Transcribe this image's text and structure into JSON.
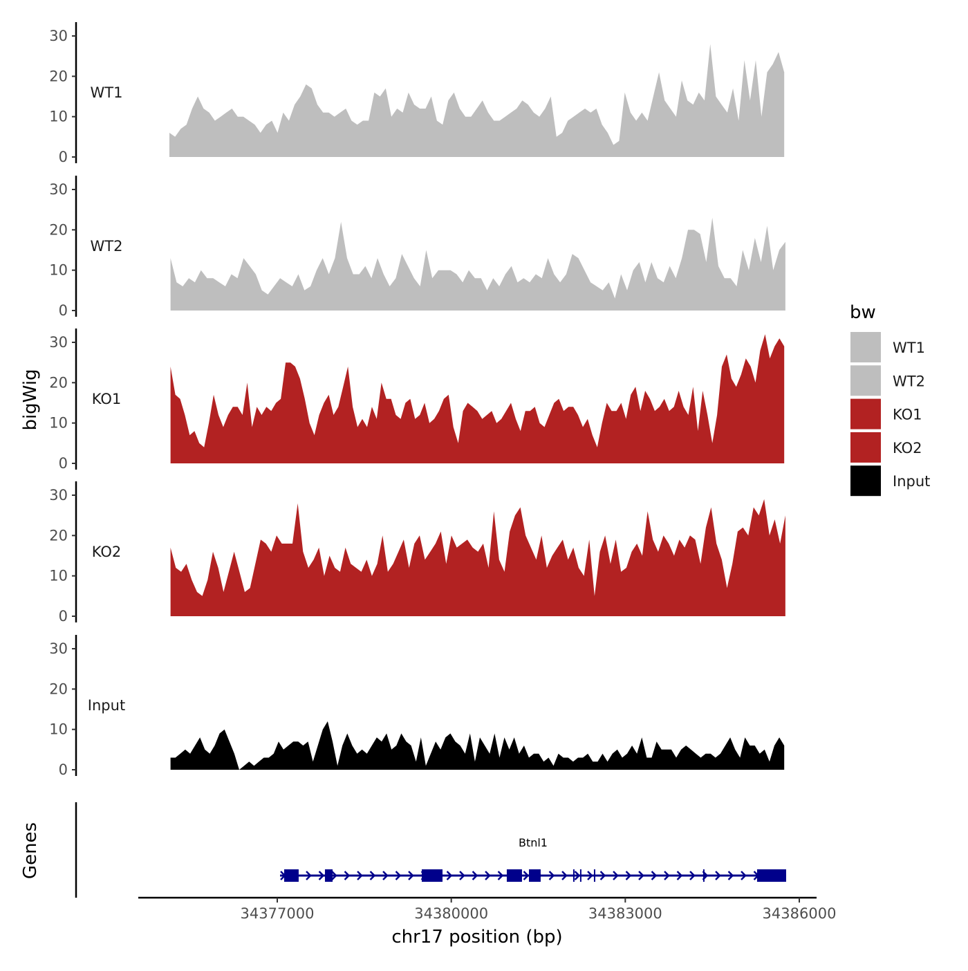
{
  "chart_data": {
    "type": "area",
    "ylabel": "bigWig",
    "genes_label": "Genes",
    "xlabel": "chr17 position (bp)",
    "xlim": [
      34374800,
      34386300
    ],
    "x_ticks": [
      34377000,
      34380000,
      34383000,
      34386000
    ],
    "x_tick_labels": [
      "34377000",
      "34380000",
      "34383000",
      "34386000"
    ],
    "ylim": [
      0,
      32
    ],
    "y_ticks": [
      0,
      10,
      20,
      30
    ],
    "y_tick_labels": [
      "0",
      "10",
      "20",
      "30"
    ],
    "legend": {
      "title": "bw",
      "position": "right",
      "entries": [
        {
          "label": "WT1",
          "color": "#bebebe"
        },
        {
          "label": "WT2",
          "color": "#bebebe"
        },
        {
          "label": "KO1",
          "color": "#b22222"
        },
        {
          "label": "KO2",
          "color": "#b22222"
        },
        {
          "label": "Input",
          "color": "#000000"
        }
      ]
    },
    "tracks": [
      {
        "name": "WT1",
        "color": "#bebebe",
        "x_start": 34375140,
        "x_end": 34385740,
        "values": [
          6,
          5,
          7,
          8,
          12,
          15,
          12,
          11,
          9,
          10,
          11,
          12,
          10,
          10,
          9,
          8,
          6,
          8,
          9,
          6,
          11,
          9,
          13,
          15,
          18,
          17,
          13,
          11,
          11,
          10,
          11,
          12,
          9,
          8,
          9,
          9,
          16,
          15,
          17,
          10,
          12,
          11,
          16,
          13,
          12,
          12,
          15,
          9,
          8,
          14,
          16,
          12,
          10,
          10,
          12,
          14,
          11,
          9,
          9,
          10,
          11,
          12,
          14,
          13,
          11,
          10,
          12,
          15,
          5,
          6,
          9,
          10,
          11,
          12,
          11,
          12,
          8,
          6,
          3,
          4,
          16,
          11,
          9,
          11,
          9,
          15,
          21,
          14,
          12,
          10,
          19,
          14,
          13,
          16,
          14,
          28,
          15,
          13,
          11,
          17,
          9,
          24,
          14,
          24,
          10,
          21,
          23,
          26,
          21
        ]
      },
      {
        "name": "WT2",
        "color": "#bebebe",
        "x_start": 34375160,
        "x_end": 34385760,
        "values": [
          13,
          7,
          6,
          8,
          7,
          10,
          8,
          8,
          7,
          6,
          9,
          8,
          13,
          11,
          9,
          5,
          4,
          6,
          8,
          7,
          6,
          9,
          5,
          6,
          10,
          13,
          9,
          13,
          22,
          13,
          9,
          9,
          11,
          8,
          13,
          9,
          6,
          8,
          14,
          11,
          8,
          6,
          15,
          8,
          10,
          10,
          10,
          9,
          7,
          10,
          8,
          8,
          5,
          8,
          6,
          9,
          11,
          7,
          8,
          7,
          9,
          8,
          13,
          9,
          7,
          9,
          14,
          13,
          10,
          7,
          6,
          5,
          7,
          3,
          9,
          5,
          10,
          12,
          7,
          12,
          8,
          7,
          11,
          8,
          13,
          20,
          20,
          19,
          12,
          23,
          11,
          8,
          8,
          6,
          15,
          10,
          18,
          12,
          21,
          10,
          15,
          17
        ]
      },
      {
        "name": "KO1",
        "color": "#b22222",
        "x_start": 34375160,
        "x_end": 34385740,
        "values": [
          24,
          17,
          16,
          12,
          7,
          8,
          5,
          4,
          10,
          17,
          12,
          9,
          12,
          14,
          14,
          12,
          20,
          9,
          14,
          12,
          14,
          13,
          15,
          16,
          25,
          25,
          24,
          21,
          16,
          10,
          7,
          12,
          15,
          17,
          12,
          14,
          19,
          24,
          14,
          9,
          11,
          9,
          14,
          11,
          20,
          16,
          16,
          12,
          11,
          15,
          16,
          11,
          12,
          15,
          10,
          11,
          13,
          16,
          17,
          9,
          5,
          13,
          15,
          14,
          13,
          11,
          12,
          13,
          10,
          11,
          13,
          15,
          11,
          8,
          13,
          13,
          14,
          10,
          9,
          12,
          15,
          16,
          13,
          14,
          14,
          12,
          9,
          11,
          7,
          4,
          10,
          15,
          13,
          13,
          15,
          11,
          17,
          19,
          13,
          18,
          16,
          13,
          14,
          16,
          13,
          14,
          18,
          14,
          12,
          19,
          8,
          18,
          12,
          5,
          12,
          24,
          27,
          21,
          19,
          22,
          26,
          24,
          20,
          28,
          32,
          26,
          29,
          31,
          29
        ]
      },
      {
        "name": "KO2",
        "color": "#b22222",
        "x_start": 34375160,
        "x_end": 34385760,
        "values": [
          17,
          12,
          11,
          13,
          9,
          6,
          5,
          9,
          16,
          12,
          6,
          11,
          16,
          11,
          6,
          7,
          13,
          19,
          18,
          16,
          20,
          18,
          18,
          18,
          28,
          16,
          12,
          14,
          17,
          10,
          15,
          12,
          11,
          17,
          13,
          12,
          11,
          14,
          10,
          13,
          20,
          11,
          13,
          16,
          19,
          12,
          18,
          20,
          14,
          16,
          18,
          21,
          13,
          20,
          17,
          18,
          19,
          17,
          16,
          18,
          12,
          26,
          14,
          11,
          21,
          25,
          27,
          20,
          17,
          14,
          20,
          12,
          15,
          17,
          19,
          14,
          17,
          12,
          10,
          19,
          5,
          16,
          20,
          13,
          19,
          11,
          12,
          16,
          18,
          15,
          26,
          19,
          16,
          20,
          18,
          15,
          19,
          17,
          20,
          19,
          13,
          22,
          27,
          18,
          14,
          7,
          13,
          21,
          22,
          20,
          27,
          25,
          29,
          20,
          24,
          18,
          25
        ]
      },
      {
        "name": "Input",
        "color": "#000000",
        "x_start": 34375160,
        "x_end": 34385740,
        "values": [
          3,
          3,
          4,
          5,
          4,
          6,
          8,
          5,
          4,
          6,
          9,
          10,
          7,
          4,
          0,
          1,
          2,
          1,
          2,
          3,
          3,
          4,
          7,
          5,
          6,
          7,
          7,
          6,
          7,
          2,
          6,
          10,
          12,
          7,
          1,
          6,
          9,
          6,
          4,
          5,
          4,
          6,
          8,
          7,
          9,
          5,
          6,
          9,
          7,
          6,
          2,
          8,
          1,
          4,
          7,
          5,
          8,
          9,
          7,
          6,
          4,
          9,
          2,
          8,
          6,
          4,
          9,
          3,
          8,
          5,
          8,
          4,
          6,
          3,
          4,
          4,
          2,
          3,
          1,
          4,
          3,
          3,
          2,
          3,
          3,
          4,
          2,
          2,
          4,
          2,
          4,
          5,
          3,
          4,
          6,
          4,
          8,
          3,
          3,
          7,
          5,
          5,
          5,
          3,
          5,
          6,
          5,
          4,
          3,
          4,
          4,
          3,
          4,
          6,
          8,
          5,
          3,
          8,
          6,
          6,
          4,
          5,
          2,
          6,
          8,
          6
        ]
      }
    ],
    "gene": {
      "name": "Btnl1",
      "color": "#00008b",
      "strand": "+",
      "start": 34377048,
      "end": 34385773,
      "exons": [
        [
          34377119,
          34377369
        ],
        [
          34377822,
          34377954
        ],
        [
          34379491,
          34379849
        ],
        [
          34380957,
          34381219
        ],
        [
          34381339,
          34381541
        ],
        [
          34385272,
          34385773
        ]
      ],
      "small_features": [
        34382113,
        34382232,
        34382471,
        34384354
      ]
    }
  }
}
